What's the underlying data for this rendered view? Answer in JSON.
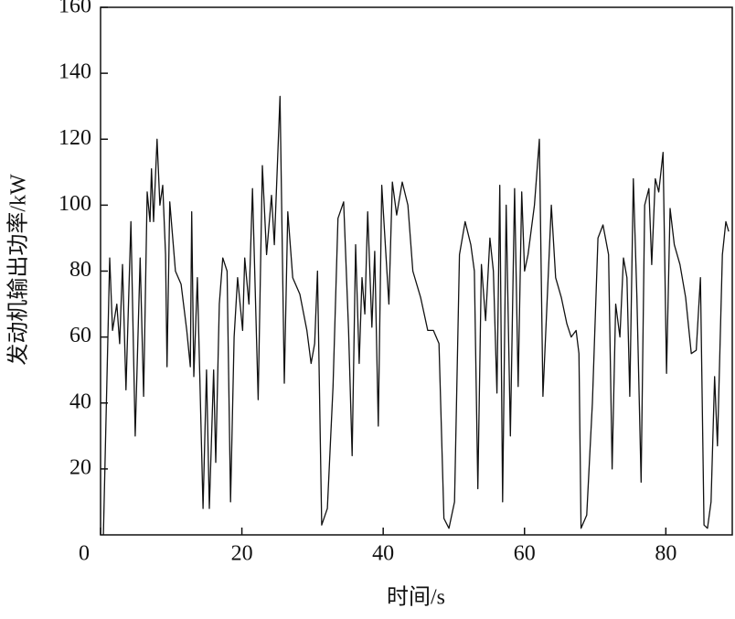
{
  "chart_data": {
    "type": "line",
    "x_label": "时间/s",
    "y_label": "发动机输出功率/kW",
    "xlim": [
      0,
      89.4
    ],
    "ylim": [
      0,
      160
    ],
    "xticks": [
      0,
      20,
      40,
      60,
      80
    ],
    "yticks": [
      20,
      40,
      60,
      80,
      100,
      120,
      140,
      160
    ],
    "series": [
      {
        "color": "#111111",
        "x": [
          0.4,
          1.3,
          1.7,
          2.3,
          2.7,
          3.1,
          3.6,
          4.3,
          4.9,
          5.6,
          6.1,
          6.6,
          7,
          7.2,
          7.5,
          8,
          8.4,
          8.8,
          9.2,
          9.4,
          9.8,
          10.6,
          11.4,
          12.2,
          12.7,
          12.9,
          13.2,
          13.7,
          14.5,
          15,
          15.4,
          16,
          16.3,
          16.8,
          17.3,
          17.9,
          18.4,
          18.9,
          19.4,
          20.1,
          20.4,
          21,
          21.5,
          22.3,
          22.9,
          23.5,
          24.2,
          24.6,
          25.4,
          26,
          26.5,
          27.2,
          28.2,
          29.2,
          29.8,
          30.3,
          30.7,
          31.3,
          32.1,
          32.9,
          33.6,
          34.4,
          35.1,
          35.6,
          36.1,
          36.6,
          37,
          37.4,
          37.8,
          38.4,
          38.8,
          39.3,
          39.8,
          40.8,
          41.3,
          41.9,
          42.7,
          43.5,
          44.2,
          45.3,
          46.3,
          47.1,
          47.9,
          48.6,
          49.3,
          50.1,
          50.8,
          51.6,
          52.4,
          52.9,
          53.4,
          53.9,
          54.5,
          55.1,
          55.6,
          56.1,
          56.5,
          56.9,
          57.4,
          58,
          58.6,
          59.1,
          59.6,
          60,
          60.5,
          61.4,
          62.1,
          62.6,
          63.1,
          63.8,
          64.4,
          65.2,
          66,
          66.6,
          67.3,
          67.7,
          68,
          68.8,
          69.6,
          70.4,
          71.1,
          71.9,
          72.4,
          72.9,
          73.5,
          74,
          74.5,
          74.9,
          75.4,
          75.9,
          76.5,
          77,
          77.6,
          78,
          78.5,
          79,
          79.6,
          80.1,
          80.6,
          81.2,
          82,
          82.8,
          83.6,
          84.3,
          84.9,
          85.4,
          85.9,
          86.4,
          86.9,
          87.3,
          88,
          88.5,
          88.9
        ],
        "values": [
          0,
          84,
          62,
          70,
          58,
          82,
          44,
          95,
          30,
          84,
          42,
          104,
          95,
          111,
          95,
          120,
          100,
          106,
          85,
          51,
          101,
          80,
          76,
          62,
          51,
          98,
          48,
          78,
          8,
          50,
          8,
          50,
          22,
          70,
          84,
          80,
          10,
          60,
          78,
          62,
          84,
          70,
          105,
          41,
          112,
          85,
          103,
          88,
          133,
          46,
          98,
          78,
          73,
          62,
          52,
          58,
          80,
          3,
          8,
          45,
          96,
          101,
          62,
          24,
          88,
          52,
          78,
          67,
          98,
          63,
          86,
          33,
          106,
          70,
          107,
          97,
          107,
          100,
          80,
          72,
          62,
          62,
          58,
          5,
          2,
          10,
          85,
          95,
          88,
          80,
          14,
          82,
          65,
          90,
          80,
          43,
          106,
          10,
          100,
          30,
          105,
          45,
          104,
          80,
          85,
          100,
          120,
          42,
          66,
          100,
          78,
          72,
          64,
          60,
          62,
          55,
          2,
          6,
          40,
          90,
          94,
          85,
          20,
          70,
          60,
          84,
          78,
          42,
          108,
          72,
          16,
          100,
          105,
          82,
          108,
          104,
          116,
          49,
          99,
          88,
          82,
          72,
          55,
          56,
          78,
          3,
          2,
          10,
          48,
          27,
          85,
          95,
          92
        ]
      }
    ]
  }
}
